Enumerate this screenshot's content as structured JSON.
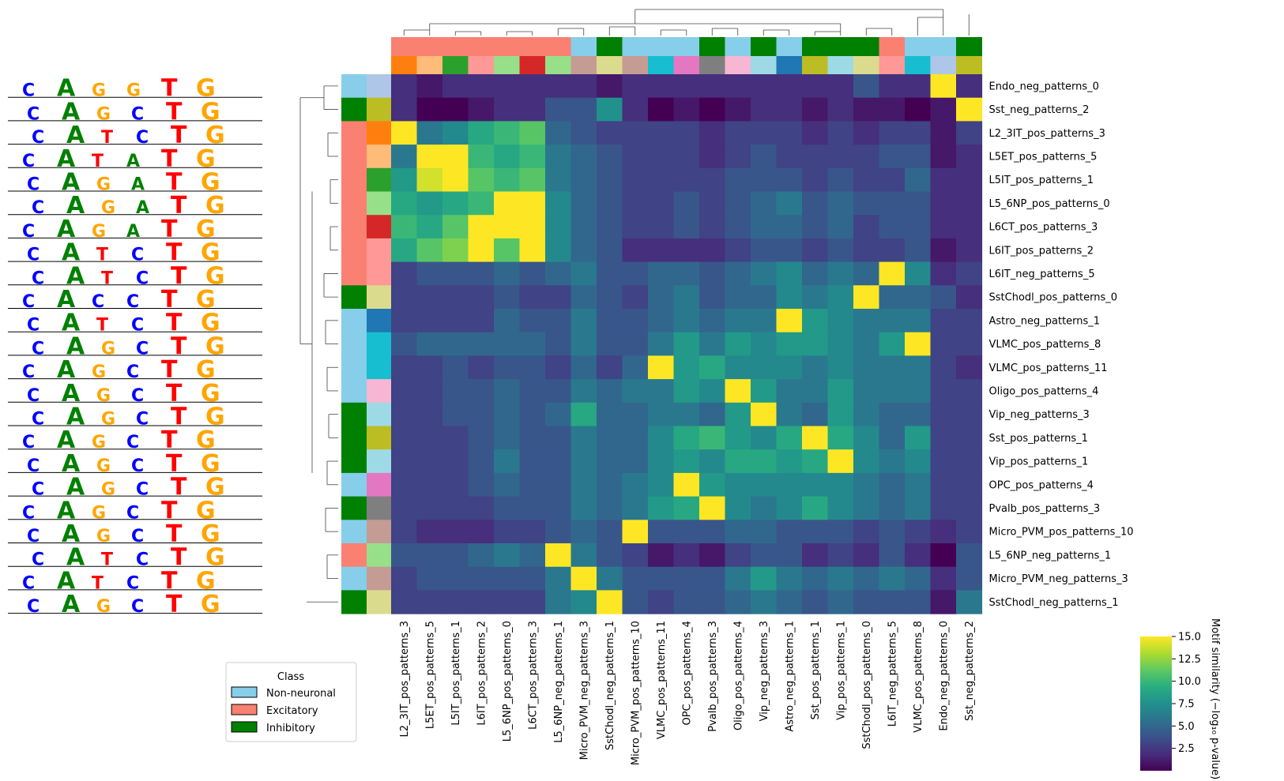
{
  "chart_data": {
    "type": "heatmap",
    "title": "",
    "rows": [
      "Endo_neg_patterns_0",
      "Sst_neg_patterns_2",
      "L2_3IT_pos_patterns_3",
      "L5ET_pos_patterns_5",
      "L5IT_pos_patterns_1",
      "L5_6NP_pos_patterns_0",
      "L6CT_pos_patterns_3",
      "L6IT_pos_patterns_2",
      "L6IT_neg_patterns_5",
      "SstChodl_pos_patterns_0",
      "Astro_neg_patterns_1",
      "VLMC_pos_patterns_8",
      "VLMC_pos_patterns_11",
      "Oligo_pos_patterns_4",
      "Vip_neg_patterns_3",
      "Sst_pos_patterns_1",
      "Vip_pos_patterns_1",
      "OPC_pos_patterns_4",
      "Pvalb_pos_patterns_3",
      "Micro_PVM_pos_patterns_10",
      "L5_6NP_neg_patterns_1",
      "Micro_PVM_neg_patterns_3",
      "SstChodl_neg_patterns_1"
    ],
    "columns": [
      "L2_3IT_pos_patterns_3",
      "L5ET_pos_patterns_5",
      "L5IT_pos_patterns_1",
      "L6IT_pos_patterns_2",
      "L5_6NP_pos_patterns_0",
      "L6CT_pos_patterns_3",
      "L5_6NP_neg_patterns_1",
      "Micro_PVM_neg_patterns_3",
      "SstChodl_neg_patterns_1",
      "Micro_PVM_pos_patterns_10",
      "VLMC_pos_patterns_11",
      "OPC_pos_patterns_4",
      "Pvalb_pos_patterns_3",
      "Oligo_pos_patterns_4",
      "Vip_neg_patterns_3",
      "Astro_neg_patterns_1",
      "Sst_pos_patterns_1",
      "Vip_pos_patterns_1",
      "SstChodl_pos_patterns_0",
      "L6IT_neg_patterns_5",
      "VLMC_pos_patterns_8",
      "Endo_neg_patterns_0",
      "Sst_neg_patterns_2"
    ],
    "values": [
      [
        2,
        1,
        2,
        2,
        2,
        2,
        2,
        2,
        1,
        2,
        2,
        2,
        2,
        2,
        2,
        2,
        2,
        2,
        4,
        2,
        2,
        15,
        2
      ],
      [
        2,
        0,
        0,
        1,
        2,
        2,
        4,
        4,
        7.5,
        2,
        0,
        1,
        0,
        1,
        2,
        2,
        1,
        2,
        1,
        1,
        0,
        1,
        15
      ],
      [
        15,
        6,
        7,
        9,
        10,
        11,
        5,
        4,
        3,
        3,
        3,
        3,
        2,
        3,
        3,
        3,
        2,
        3,
        2,
        3,
        3,
        1,
        3
      ],
      [
        6,
        15,
        15,
        10,
        9,
        10,
        6,
        5,
        4,
        3,
        3,
        3,
        2,
        3,
        4,
        3,
        3,
        3,
        3,
        4,
        4,
        1,
        2
      ],
      [
        8,
        14,
        15,
        11,
        10,
        11,
        6,
        5,
        4,
        3,
        3,
        3,
        3,
        4,
        4,
        4,
        3,
        4,
        3,
        3,
        5,
        2,
        2
      ],
      [
        9,
        8,
        9,
        10,
        15,
        15,
        7,
        5,
        4,
        3,
        3,
        4,
        3,
        4,
        5,
        6,
        4,
        5,
        4,
        4,
        4,
        2,
        2
      ],
      [
        10,
        9,
        11,
        15,
        15,
        15,
        7,
        5,
        4,
        3,
        3,
        4,
        3,
        4,
        5,
        5,
        4,
        5,
        3,
        4,
        4,
        2,
        2
      ],
      [
        9,
        11,
        12,
        15,
        11,
        15,
        7,
        5,
        4,
        2,
        2,
        2,
        2,
        3,
        4,
        4,
        3,
        4,
        3,
        3,
        4,
        1,
        2
      ],
      [
        3,
        4,
        4,
        4,
        5,
        4,
        5,
        6,
        4,
        4,
        5,
        5,
        4,
        5,
        6,
        7,
        5,
        6,
        5,
        15,
        7,
        2,
        3
      ],
      [
        3,
        3,
        3,
        3,
        4,
        3,
        3,
        5,
        4,
        3,
        5,
        6,
        4,
        5,
        5,
        7,
        6,
        7,
        15,
        5,
        5,
        4,
        2
      ],
      [
        3,
        3,
        3,
        3,
        5,
        4,
        4,
        6,
        4,
        4,
        5,
        6,
        5,
        6,
        6,
        15,
        8,
        7,
        6,
        6,
        6,
        3,
        3
      ],
      [
        4,
        5,
        5,
        5,
        5,
        5,
        4,
        6,
        4,
        4,
        6,
        8,
        6,
        8,
        7,
        8,
        8,
        7,
        6,
        8,
        15,
        3,
        3
      ],
      [
        3,
        3,
        4,
        3,
        4,
        4,
        3,
        5,
        3,
        5,
        15,
        8,
        9,
        7,
        7,
        7,
        6,
        7,
        6,
        6,
        6,
        3,
        2
      ],
      [
        3,
        3,
        4,
        4,
        5,
        4,
        4,
        6,
        5,
        6,
        6,
        8,
        7,
        15,
        8,
        6,
        6,
        8,
        6,
        6,
        6,
        3,
        3
      ],
      [
        3,
        3,
        4,
        4,
        5,
        4,
        5,
        9,
        5,
        5,
        6,
        6,
        5,
        8,
        15,
        6,
        5,
        8,
        6,
        5,
        5,
        3,
        3
      ],
      [
        3,
        3,
        3,
        4,
        5,
        4,
        4,
        6,
        5,
        5,
        7,
        9,
        10,
        8,
        7,
        9,
        15,
        9,
        7,
        5,
        8,
        3,
        3
      ],
      [
        3,
        3,
        3,
        4,
        6,
        4,
        4,
        6,
        5,
        5,
        7,
        8,
        7,
        9,
        9,
        8,
        9,
        15,
        7,
        6,
        7,
        3,
        3
      ],
      [
        3,
        3,
        3,
        4,
        5,
        4,
        4,
        6,
        5,
        6,
        7,
        15,
        8,
        7,
        7,
        7,
        7,
        7,
        6,
        5,
        6,
        3,
        3
      ],
      [
        3,
        3,
        3,
        3,
        4,
        4,
        4,
        6,
        5,
        6,
        8,
        9,
        15,
        7,
        6,
        7,
        9,
        7,
        6,
        5,
        6,
        3,
        3
      ],
      [
        3,
        2,
        2,
        2,
        3,
        3,
        4,
        5,
        4,
        15,
        4,
        4,
        4,
        5,
        5,
        4,
        4,
        4,
        3,
        4,
        3,
        2,
        3
      ],
      [
        4,
        4,
        4,
        5,
        6,
        5,
        15,
        6,
        4,
        3,
        1,
        2,
        1,
        3,
        4,
        4,
        2,
        3,
        2,
        4,
        2,
        0,
        4
      ],
      [
        3,
        4,
        4,
        4,
        4,
        4,
        6,
        15,
        6,
        4,
        4,
        4,
        4,
        6,
        8,
        6,
        5,
        6,
        5,
        6,
        5,
        2,
        4
      ],
      [
        3,
        3,
        3,
        3,
        3,
        3,
        6,
        7,
        15,
        4,
        3,
        4,
        4,
        5,
        6,
        5,
        4,
        5,
        4,
        4,
        4,
        1,
        6
      ]
    ],
    "zlim": [
      0,
      15
    ],
    "colorbar": {
      "label": "Motif similarity (−log₁₀ p-value)",
      "ticks": [
        "2.5",
        "5.0",
        "7.5",
        "10.0",
        "12.5",
        "15.0"
      ],
      "tick_values": [
        2.5,
        5,
        7.5,
        10,
        12.5,
        15
      ]
    },
    "colormap": [
      "#440154",
      "#472d7b",
      "#3b528b",
      "#2c728e",
      "#21918c",
      "#28ae80",
      "#5ec962",
      "#addc30",
      "#fde725"
    ],
    "row_class": [
      "Non-neuronal",
      "Inhibitory",
      "Excitatory",
      "Excitatory",
      "Excitatory",
      "Excitatory",
      "Excitatory",
      "Excitatory",
      "Excitatory",
      "Inhibitory",
      "Non-neuronal",
      "Non-neuronal",
      "Non-neuronal",
      "Non-neuronal",
      "Inhibitory",
      "Inhibitory",
      "Inhibitory",
      "Non-neuronal",
      "Inhibitory",
      "Non-neuronal",
      "Excitatory",
      "Non-neuronal",
      "Inhibitory"
    ],
    "row_type_colors": [
      "#aec7e8",
      "#bcbd22",
      "#ff7f0e",
      "#ffbb78",
      "#2ca02c",
      "#98df8a",
      "#d62728",
      "#ff9896",
      "#ff9896",
      "#dbdb8d",
      "#1f77b4",
      "#17becf",
      "#17becf",
      "#f7b6d2",
      "#9edae5",
      "#bcbd22",
      "#9edae5",
      "#e377c2",
      "#7f7f7f",
      "#c49c94",
      "#98df8a",
      "#c49c94",
      "#dbdb8d"
    ],
    "col_class": [
      "Excitatory",
      "Excitatory",
      "Excitatory",
      "Excitatory",
      "Excitatory",
      "Excitatory",
      "Excitatory",
      "Non-neuronal",
      "Inhibitory",
      "Non-neuronal",
      "Non-neuronal",
      "Non-neuronal",
      "Inhibitory",
      "Non-neuronal",
      "Inhibitory",
      "Non-neuronal",
      "Inhibitory",
      "Inhibitory",
      "Inhibitory",
      "Excitatory",
      "Non-neuronal",
      "Non-neuronal",
      "Inhibitory"
    ],
    "col_type_colors": [
      "#ff7f0e",
      "#ffbb78",
      "#2ca02c",
      "#ff9896",
      "#98df8a",
      "#d62728",
      "#98df8a",
      "#c49c94",
      "#dbdb8d",
      "#c49c94",
      "#17becf",
      "#e377c2",
      "#7f7f7f",
      "#f7b6d2",
      "#9edae5",
      "#1f77b4",
      "#bcbd22",
      "#9edae5",
      "#dbdb8d",
      "#ff9896",
      "#17becf",
      "#aec7e8",
      "#bcbd22"
    ],
    "legend": {
      "title": "Class",
      "placement": "bottom-left",
      "entries": [
        {
          "name": "Non-neuronal",
          "color": "#87ceeb"
        },
        {
          "name": "Excitatory",
          "color": "#fa8072"
        },
        {
          "name": "Inhibitory",
          "color": "#008000"
        }
      ]
    },
    "dendrograms": [
      "rows-left",
      "columns-top"
    ],
    "motif_logos": [
      [
        "C",
        "A",
        "G",
        "G",
        "T",
        "G"
      ],
      [
        "C",
        "A",
        "G",
        "C",
        "T",
        "G"
      ],
      [
        "C",
        "A",
        "T",
        "C",
        "T",
        "G"
      ],
      [
        "C",
        "A",
        "T",
        "A",
        "T",
        "G"
      ],
      [
        "C",
        "A",
        "G",
        "A",
        "T",
        "G"
      ],
      [
        "C",
        "A",
        "G",
        "A",
        "T",
        "G"
      ],
      [
        "C",
        "A",
        "G",
        "A",
        "T",
        "G"
      ],
      [
        "C",
        "A",
        "T",
        "C",
        "T",
        "G"
      ],
      [
        "C",
        "A",
        "T",
        "C",
        "T",
        "G"
      ],
      [
        "C",
        "A",
        "C",
        "C",
        "T",
        "G"
      ],
      [
        "C",
        "A",
        "T",
        "C",
        "T",
        "G"
      ],
      [
        "C",
        "A",
        "G",
        "C",
        "T",
        "G"
      ],
      [
        "C",
        "A",
        "G",
        "C",
        "T",
        "G"
      ],
      [
        "C",
        "A",
        "G",
        "C",
        "T",
        "G"
      ],
      [
        "C",
        "A",
        "G",
        "C",
        "T",
        "G"
      ],
      [
        "C",
        "A",
        "G",
        "C",
        "T",
        "G"
      ],
      [
        "C",
        "A",
        "G",
        "C",
        "T",
        "G"
      ],
      [
        "C",
        "A",
        "G",
        "C",
        "T",
        "G"
      ],
      [
        "C",
        "A",
        "G",
        "C",
        "T",
        "G"
      ],
      [
        "C",
        "A",
        "G",
        "C",
        "T",
        "G"
      ],
      [
        "C",
        "A",
        "T",
        "C",
        "T",
        "G"
      ],
      [
        "C",
        "A",
        "T",
        "C",
        "T",
        "G"
      ],
      [
        "C",
        "A",
        "G",
        "C",
        "T",
        "G"
      ]
    ],
    "logo_colors": {
      "A": "#008000",
      "C": "#0000ff",
      "G": "#ffa500",
      "T": "#ff0000"
    }
  }
}
